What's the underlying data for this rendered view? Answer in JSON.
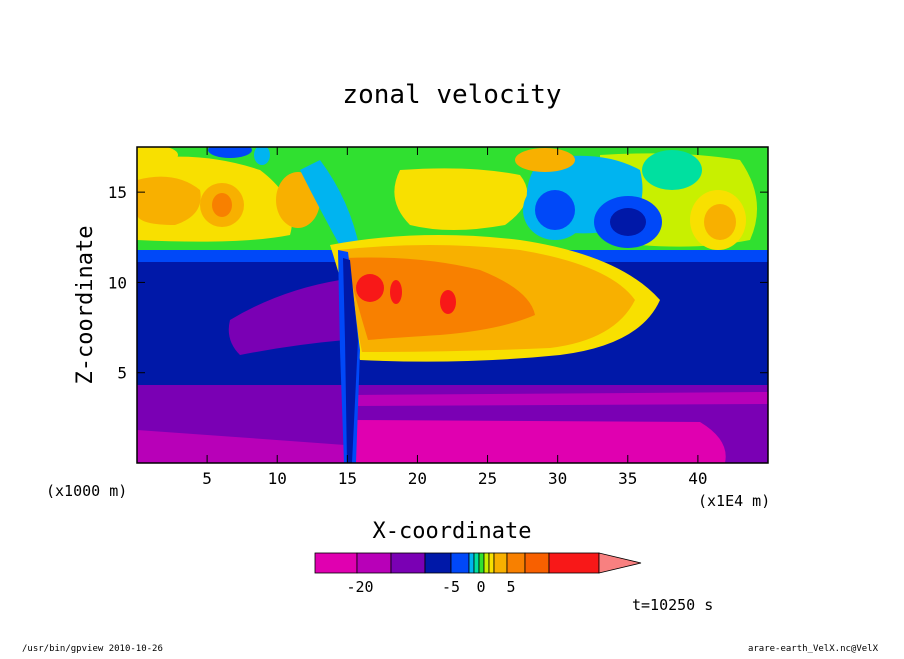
{
  "chart_data": {
    "type": "heatmap",
    "title": "zonal velocity",
    "xlabel": "X-coordinate",
    "ylabel": "Z-coordinate",
    "x_unit_label": "(x1000 m)",
    "x_scale_label": "(x1E4 m)",
    "xlim": [
      0,
      45
    ],
    "ylim": [
      0,
      17.5
    ],
    "x_ticks": [
      5,
      10,
      15,
      20,
      25,
      30,
      35,
      40
    ],
    "y_ticks": [
      5,
      10,
      15
    ],
    "colorbar": {
      "colors": [
        "#e000b0",
        "#b800b8",
        "#7a00b4",
        "#0018a8",
        "#0048f8",
        "#00b4f0",
        "#00e0a0",
        "#30e030",
        "#c8f000",
        "#f8e000",
        "#f8b000",
        "#f88000",
        "#f86000",
        "#f81818",
        "#f88080"
      ],
      "tick_labels": [
        "-20",
        "-5",
        "0",
        "5"
      ],
      "tick_values": [
        -20,
        -5,
        0,
        5
      ]
    },
    "time_label": "t=10250 s",
    "footer_left": "/usr/bin/gpview  2010-10-26",
    "footer_right": "arare-earth_VelX.nc@VelX"
  }
}
